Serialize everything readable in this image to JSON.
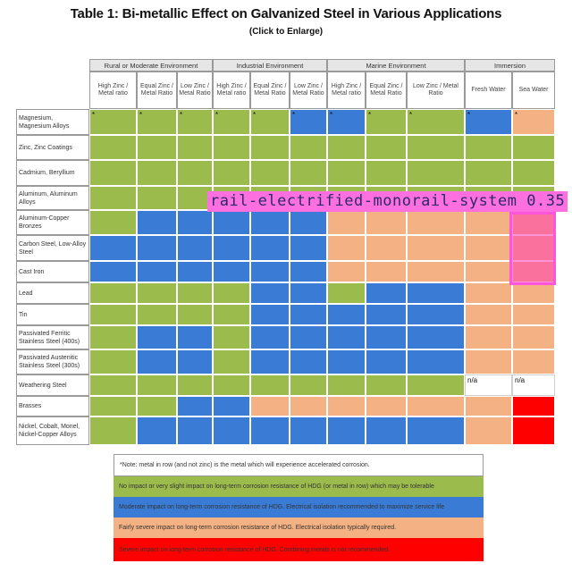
{
  "title": "Table 1: Bi-metallic Effect on Galvanized Steel in Various Applications",
  "subtitle": "(Click to Enlarge)",
  "groups": [
    "Rural or Moderate Environment",
    "Industrial Environment",
    "Marine Environment",
    "Immersion"
  ],
  "columns": [
    "High Zinc / Metal ratio",
    "Equal Zinc / Metal Ratio",
    "Low Zinc / Metal Ratio",
    "High Zinc / Metal ratio",
    "Equal Zinc / Metal Ratio",
    "Low Zinc / Metal Ratio",
    "High Zinc / Metal ratio",
    "Equal Zinc / Metal Ratio",
    "Low Zinc / Metal Ratio",
    "Fresh Water",
    "Sea Water"
  ],
  "rows": [
    {
      "label": "Magnesium, Magnesium Alloys",
      "cells": [
        "G",
        "G",
        "G",
        "G",
        "G",
        "B",
        "B",
        "G",
        "G",
        "B",
        "O"
      ],
      "notes": [
        "*",
        "*",
        "*",
        "*",
        "*",
        "*",
        "*",
        "*",
        "*",
        "*",
        "*"
      ]
    },
    {
      "label": "Zinc, Zinc Coatings",
      "cells": [
        "G",
        "G",
        "G",
        "G",
        "G",
        "G",
        "G",
        "G",
        "G",
        "G",
        "G"
      ],
      "notes": []
    },
    {
      "label": "Cadmium, Beryllium",
      "cells": [
        "G",
        "G",
        "G",
        "G",
        "G",
        "G",
        "G",
        "G",
        "G",
        "G",
        "G"
      ],
      "notes": []
    },
    {
      "label": "Aluminum, Aluminum Alloys",
      "cells": [
        "G",
        "G",
        "G",
        "G",
        "G",
        "G",
        "G",
        "G",
        "G",
        "G",
        "G"
      ],
      "notes": []
    },
    {
      "label": "Aluminum-Copper Bronzes",
      "cells": [
        "G",
        "B",
        "B",
        "B",
        "B",
        "B",
        "O",
        "O",
        "O",
        "O",
        "O"
      ],
      "notes": []
    },
    {
      "label": "Carbon Steel, Low-Alloy Steel",
      "cells": [
        "B",
        "B",
        "B",
        "B",
        "B",
        "B",
        "O",
        "O",
        "O",
        "O",
        "O"
      ],
      "notes": []
    },
    {
      "label": "Cast Iron",
      "cells": [
        "B",
        "B",
        "B",
        "B",
        "B",
        "B",
        "O",
        "O",
        "O",
        "O",
        "O"
      ],
      "notes": []
    },
    {
      "label": "Lead",
      "cells": [
        "G",
        "G",
        "G",
        "G",
        "B",
        "B",
        "G",
        "B",
        "B",
        "O",
        "O"
      ],
      "notes": []
    },
    {
      "label": "Tin",
      "cells": [
        "G",
        "G",
        "G",
        "G",
        "B",
        "B",
        "B",
        "B",
        "B",
        "O",
        "O"
      ],
      "notes": []
    },
    {
      "label": "Passivated Ferritic Stainless Steel (400s)",
      "cells": [
        "G",
        "B",
        "B",
        "G",
        "B",
        "B",
        "B",
        "B",
        "B",
        "O",
        "O"
      ],
      "notes": []
    },
    {
      "label": "Passivated Austenitic Stainless Steel (300s)",
      "cells": [
        "G",
        "B",
        "B",
        "G",
        "B",
        "B",
        "B",
        "B",
        "B",
        "O",
        "O"
      ],
      "notes": []
    },
    {
      "label": "Weathering Steel",
      "cells": [
        "G",
        "G",
        "G",
        "G",
        "G",
        "G",
        "G",
        "G",
        "G",
        "W",
        "W"
      ],
      "notes": [
        "",
        "",
        "",
        "",
        "",
        "",
        "",
        "",
        "",
        "n/a",
        "n/a"
      ]
    },
    {
      "label": "Brasses",
      "cells": [
        "G",
        "G",
        "B",
        "B",
        "O",
        "O",
        "O",
        "O",
        "O",
        "O",
        "R"
      ],
      "notes": []
    },
    {
      "label": "Nickel, Cobalt, Monel, Nickel-Copper Alloys",
      "cells": [
        "G",
        "B",
        "B",
        "B",
        "B",
        "B",
        "B",
        "B",
        "B",
        "O",
        "R"
      ],
      "notes": []
    }
  ],
  "legend": [
    "*Note: metal in row (and not zinc) is the metal which will experience accelerated corrosion.",
    "No impact or very slight impact on long-term corrosion resistance of HDG (or metal in row) which may be tolerable",
    "Moderate impact on long-term corrosion resistance of HDG. Electrical isolation recommended to maximize service life",
    "Fairly severe impact on long-term corrosion resistance of HDG. Electrical isolation typically required.",
    "Severe impact on long-term corrosion resistance of HDG. Combining metals is not recommended."
  ],
  "colors": {
    "G": "#9bbb4d",
    "B": "#3a7bd5",
    "O": "#f4b183",
    "R": "#ff0000"
  },
  "detection": {
    "label": "rail-electrified-monorail-system 0.35",
    "color": "#ff55dd"
  }
}
